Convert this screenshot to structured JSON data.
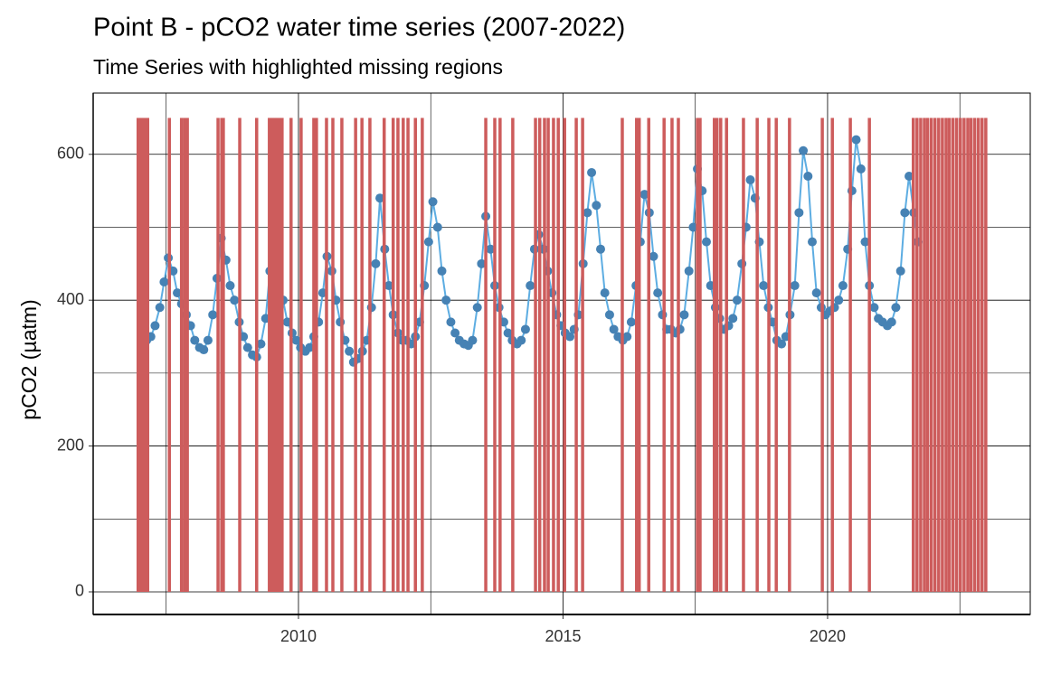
{
  "chart_data": {
    "type": "scatter",
    "title": "Point B - pCO2 water time series (2007-2022)",
    "subtitle": "Time Series with highlighted missing regions",
    "y_label": "pCO2 (µatm)",
    "xlim": [
      2006.12,
      2023.83
    ],
    "xticks": [
      2010,
      2015,
      2020
    ],
    "xminor": [
      2007.5,
      2012.5,
      2017.5,
      2022.5
    ],
    "ylim": [
      -31,
      684
    ],
    "yticks": [
      0,
      200,
      400,
      600
    ],
    "yminor": [
      100,
      300,
      500
    ],
    "grid": true,
    "series": [
      {
        "color": "#4682b4",
        "line_color": "#5dade2",
        "x": [
          2007.04,
          2007.13,
          2007.21,
          2007.29,
          2007.38,
          2007.46,
          2007.54,
          2007.63,
          2007.71,
          2007.79,
          2007.88,
          2007.96,
          2008.04,
          2008.13,
          2008.21,
          2008.29,
          2008.38,
          2008.46,
          2008.54,
          2008.63,
          2008.71,
          2008.79,
          2008.88,
          2008.96,
          2009.04,
          2009.13,
          2009.21,
          2009.29,
          2009.38,
          2009.46,
          2009.54,
          2009.63,
          2009.71,
          2009.79,
          2009.88,
          2009.96,
          2010.04,
          2010.13,
          2010.21,
          2010.29,
          2010.38,
          2010.46,
          2010.54,
          2010.63,
          2010.71,
          2010.79,
          2010.88,
          2010.96,
          2011.04,
          2011.13,
          2011.21,
          2011.29,
          2011.38,
          2011.46,
          2011.54,
          2011.63,
          2011.71,
          2011.79,
          2011.88,
          2011.96,
          2012.04,
          2012.13,
          2012.21,
          2012.29,
          2012.38,
          2012.46,
          2012.54,
          2012.63,
          2012.71,
          2012.79,
          2012.88,
          2012.96,
          2013.04,
          2013.13,
          2013.21,
          2013.29,
          2013.38,
          2013.46,
          2013.54,
          2013.63,
          2013.71,
          2013.79,
          2013.88,
          2013.96,
          2014.04,
          2014.13,
          2014.21,
          2014.29,
          2014.38,
          2014.46,
          2014.54,
          2014.63,
          2014.71,
          2014.79,
          2014.88,
          2014.96,
          2015.04,
          2015.13,
          2015.21,
          2015.29,
          2015.38,
          2015.46,
          2015.54,
          2015.63,
          2015.71,
          2015.79,
          2015.88,
          2015.96,
          2016.04,
          2016.13,
          2016.21,
          2016.29,
          2016.38,
          2016.46,
          2016.54,
          2016.63,
          2016.71,
          2016.79,
          2016.88,
          2016.96,
          2017.04,
          2017.13,
          2017.21,
          2017.29,
          2017.38,
          2017.46,
          2017.54,
          2017.63,
          2017.71,
          2017.79,
          2017.88,
          2017.96,
          2018.04,
          2018.13,
          2018.21,
          2018.29,
          2018.38,
          2018.46,
          2018.54,
          2018.63,
          2018.71,
          2018.79,
          2018.88,
          2018.96,
          2019.04,
          2019.13,
          2019.21,
          2019.29,
          2019.38,
          2019.46,
          2019.54,
          2019.63,
          2019.71,
          2019.79,
          2019.88,
          2019.96,
          2020.04,
          2020.13,
          2020.21,
          2020.29,
          2020.38,
          2020.46,
          2020.54,
          2020.63,
          2020.71,
          2020.79,
          2020.88,
          2020.96,
          2021.04,
          2021.13,
          2021.21,
          2021.29,
          2021.38,
          2021.46,
          2021.54,
          2021.63,
          2021.71
        ],
        "values": [
          348,
          345,
          350,
          365,
          390,
          425,
          458,
          440,
          410,
          395,
          380,
          365,
          345,
          335,
          332,
          345,
          380,
          430,
          485,
          455,
          420,
          400,
          370,
          350,
          335,
          325,
          322,
          340,
          375,
          440,
          490,
          460,
          400,
          370,
          355,
          345,
          335,
          330,
          335,
          350,
          370,
          410,
          460,
          440,
          400,
          370,
          345,
          330,
          315,
          320,
          330,
          345,
          390,
          450,
          540,
          470,
          420,
          380,
          355,
          345,
          345,
          340,
          350,
          370,
          420,
          480,
          535,
          500,
          440,
          400,
          370,
          355,
          345,
          340,
          338,
          345,
          390,
          450,
          515,
          470,
          420,
          390,
          370,
          355,
          345,
          340,
          345,
          360,
          420,
          470,
          490,
          470,
          440,
          410,
          380,
          365,
          355,
          350,
          360,
          380,
          450,
          520,
          575,
          530,
          470,
          410,
          380,
          360,
          350,
          345,
          350,
          370,
          420,
          480,
          545,
          520,
          460,
          410,
          380,
          360,
          360,
          355,
          360,
          380,
          440,
          500,
          580,
          550,
          480,
          420,
          390,
          375,
          360,
          365,
          375,
          400,
          450,
          500,
          565,
          540,
          480,
          420,
          390,
          370,
          345,
          340,
          350,
          380,
          420,
          520,
          605,
          570,
          480,
          410,
          390,
          380,
          385,
          390,
          400,
          420,
          470,
          550,
          620,
          580,
          480,
          420,
          390,
          375,
          370,
          365,
          370,
          390,
          440,
          520,
          570,
          520,
          480
        ]
      }
    ],
    "missing_regions": {
      "color": "#cd5c5c",
      "ymin": 0,
      "ymax": 650,
      "x": [
        2006.97,
        2007.01,
        2007.04,
        2007.08,
        2007.11,
        2007.15,
        2007.56,
        2007.79,
        2007.85,
        2007.9,
        2008.48,
        2008.55,
        2008.58,
        2008.89,
        2009.21,
        2009.45,
        2009.49,
        2009.52,
        2009.56,
        2009.59,
        2009.62,
        2009.66,
        2009.69,
        2009.86,
        2010.05,
        2010.29,
        2010.34,
        2010.53,
        2010.65,
        2010.82,
        2011.08,
        2011.2,
        2011.35,
        2011.62,
        2011.79,
        2011.88,
        2011.98,
        2012.07,
        2012.21,
        2012.34,
        2013.54,
        2013.71,
        2013.81,
        2014.05,
        2014.48,
        2014.56,
        2014.65,
        2014.72,
        2014.82,
        2014.91,
        2015.03,
        2015.25,
        2015.37,
        2016.12,
        2016.39,
        2016.44,
        2016.62,
        2016.91,
        2017.06,
        2017.18,
        2017.54,
        2017.59,
        2017.86,
        2017.91,
        2017.98,
        2018.09,
        2018.41,
        2018.67,
        2018.89,
        2019.03,
        2019.28,
        2019.9,
        2020.09,
        2020.43,
        2020.79,
        2021.62,
        2021.69,
        2021.76,
        2021.83,
        2021.89,
        2021.96,
        2022.03,
        2022.1,
        2022.17,
        2022.24,
        2022.3,
        2022.37,
        2022.44,
        2022.51,
        2022.58,
        2022.65,
        2022.71,
        2022.78,
        2022.85,
        2022.92,
        2022.99
      ]
    }
  }
}
